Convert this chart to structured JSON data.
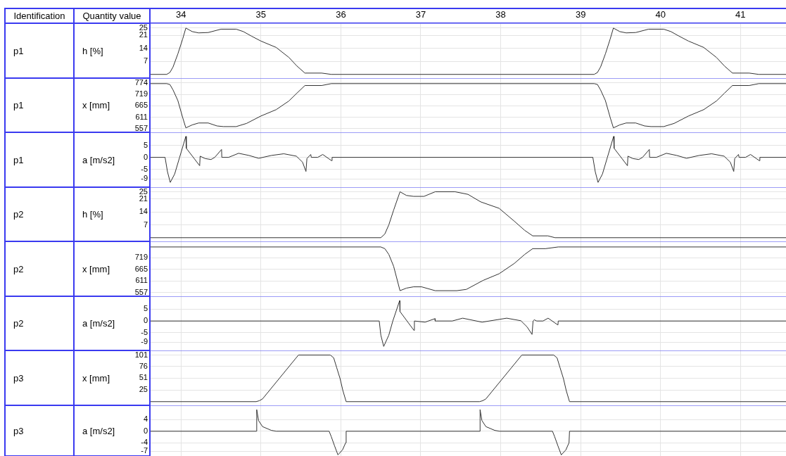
{
  "chart_data": [
    {
      "type": "line",
      "ylabel": "h [%]",
      "annotations": [
        "Identification",
        "Quantity value",
        "p1"
      ],
      "color": "#333333",
      "grid": true,
      "marker": "none",
      "xlim": [
        33.61,
        41.57
      ],
      "xticks": [
        34,
        35,
        36,
        37,
        38,
        39,
        40,
        41
      ],
      "ylim": [
        -2,
        27.5
      ],
      "yticks": [
        7,
        14,
        21,
        25
      ],
      "x": [
        33.61,
        33.82,
        33.86,
        33.9,
        33.96,
        34.02,
        34.06,
        34.14,
        34.22,
        34.34,
        34.5,
        34.69,
        34.78,
        34.88,
        35.0,
        35.19,
        35.35,
        35.45,
        35.55,
        35.76,
        35.88,
        39.17,
        39.21,
        39.25,
        39.31,
        39.37,
        39.41,
        39.49,
        39.57,
        39.69,
        39.85,
        40.04,
        40.13,
        40.23,
        40.35,
        40.54,
        40.7,
        40.8,
        40.9,
        41.11,
        41.23,
        41.57
      ],
      "values": [
        0,
        0,
        1,
        4,
        11,
        19,
        24.9,
        23,
        22.3,
        22.5,
        24.3,
        24.3,
        23,
        20.6,
        17.9,
        14.5,
        9.1,
        4.5,
        0.7,
        0.7,
        0,
        0,
        1,
        4,
        11,
        19,
        24.9,
        23,
        22.3,
        22.5,
        24.3,
        24.3,
        23,
        20.6,
        17.9,
        14.5,
        9.1,
        4.5,
        0.7,
        0.7,
        0,
        0
      ]
    },
    {
      "type": "line",
      "annotations": [
        "p1"
      ],
      "ylabel": "x [mm]",
      "color": "#333333",
      "grid": true,
      "marker": "none",
      "tick_labels": "y",
      "xlim": [
        33.61,
        41.57
      ],
      "xticks": [
        34,
        35,
        36,
        37,
        38,
        39,
        40,
        41
      ],
      "ylim": [
        540,
        796
      ],
      "yticks": [
        557,
        611,
        665,
        719,
        774
      ],
      "x": [
        33.61,
        33.82,
        33.86,
        33.9,
        33.96,
        34.02,
        34.06,
        34.14,
        34.22,
        34.34,
        34.45,
        34.53,
        34.69,
        34.82,
        35.0,
        35.19,
        35.35,
        35.45,
        35.55,
        35.76,
        35.88,
        39.17,
        39.21,
        39.25,
        39.31,
        39.37,
        39.41,
        39.49,
        39.57,
        39.69,
        39.8,
        39.88,
        40.04,
        40.17,
        40.35,
        40.54,
        40.7,
        40.8,
        40.9,
        41.11,
        41.23,
        41.57
      ],
      "values": [
        770,
        770,
        766,
        740,
        690,
        610,
        561,
        575,
        584,
        584,
        570,
        567,
        567,
        582,
        617,
        647,
        688,
        725,
        761,
        761,
        770,
        770,
        766,
        740,
        690,
        610,
        561,
        575,
        584,
        584,
        570,
        567,
        567,
        582,
        617,
        647,
        688,
        725,
        761,
        761,
        770,
        770
      ]
    },
    {
      "type": "line",
      "annotations": [
        "p1"
      ],
      "ylabel": "a [m/s2]",
      "color": "#333333",
      "grid": true,
      "marker": "none",
      "tick_labels": "y",
      "xlim": [
        33.61,
        41.57
      ],
      "xticks": [
        34,
        35,
        36,
        37,
        38,
        39,
        40,
        41
      ],
      "ylim": [
        -12.5,
        10.5
      ],
      "yticks": [
        -9,
        -5,
        0,
        5
      ],
      "x": [
        33.61,
        33.8,
        33.83,
        33.865,
        33.92,
        33.982,
        34.06,
        34.066,
        34.233,
        34.239,
        34.3,
        34.375,
        34.422,
        34.507,
        34.51,
        34.595,
        34.72,
        34.85,
        34.972,
        35.13,
        35.286,
        35.443,
        35.52,
        35.563,
        35.575,
        35.623,
        35.63,
        35.711,
        35.773,
        35.884,
        35.89,
        39.153,
        39.183,
        39.218,
        39.273,
        39.335,
        39.413,
        39.419,
        39.586,
        39.592,
        39.653,
        39.728,
        39.775,
        39.86,
        39.863,
        39.948,
        40.073,
        40.203,
        40.325,
        40.483,
        40.639,
        40.796,
        40.873,
        40.916,
        40.928,
        40.976,
        40.983,
        41.064,
        41.126,
        41.237,
        41.243,
        41.57
      ],
      "values": [
        0,
        0,
        -6,
        -10.5,
        -7,
        0,
        8.8,
        3.8,
        -3.5,
        0.5,
        -0.5,
        -0.9,
        0,
        3.3,
        0,
        0,
        1.7,
        0.8,
        -0.4,
        0.8,
        1.5,
        0.5,
        -2,
        -5.9,
        -0.5,
        1.2,
        0,
        0,
        1.2,
        -1.4,
        0,
        0,
        -6,
        -10.5,
        -7,
        0,
        8.8,
        3.8,
        -3.5,
        0.5,
        -0.5,
        -0.9,
        0,
        3.3,
        0,
        0,
        1.7,
        0.8,
        -0.4,
        0.8,
        1.5,
        0.5,
        -2,
        -5.9,
        -0.5,
        1.2,
        0,
        0,
        1.2,
        -1.4,
        0,
        0
      ]
    },
    {
      "type": "line",
      "annotations": [
        "p2"
      ],
      "ylabel": "h [%]",
      "color": "#333333",
      "grid": true,
      "marker": "none",
      "tick_labels": "y",
      "xlim": [
        33.61,
        41.57
      ],
      "xticks": [
        34,
        35,
        36,
        37,
        38,
        39,
        40,
        41
      ],
      "ylim": [
        -2,
        27.5
      ],
      "yticks": [
        7,
        14,
        21,
        25
      ],
      "x": [
        33.61,
        36.5,
        36.55,
        36.6,
        36.66,
        36.74,
        36.82,
        36.91,
        37.04,
        37.18,
        37.43,
        37.59,
        37.75,
        37.98,
        38.17,
        38.3,
        38.4,
        38.59,
        38.68,
        41.57
      ],
      "values": [
        0,
        0,
        2,
        7,
        15,
        25,
        23,
        22.5,
        22.5,
        25,
        25,
        23.6,
        19.5,
        16,
        9,
        4,
        1,
        1,
        0,
        0
      ]
    },
    {
      "type": "line",
      "annotations": [
        "p2"
      ],
      "ylabel": "x [mm]",
      "color": "#333333",
      "grid": true,
      "marker": "none",
      "tick_labels": "y",
      "xlim": [
        33.61,
        41.57
      ],
      "xticks": [
        34,
        35,
        36,
        37,
        38,
        39,
        40,
        41
      ],
      "ylim": [
        540,
        796
      ],
      "yticks": [
        557,
        611,
        665,
        719
      ],
      "x": [
        33.61,
        36.5,
        36.55,
        36.6,
        36.66,
        36.74,
        36.82,
        36.91,
        37.01,
        37.18,
        37.45,
        37.57,
        37.78,
        37.98,
        38.17,
        38.3,
        38.4,
        38.56,
        38.72,
        41.57
      ],
      "values": [
        770,
        770,
        762,
        735,
        680,
        566,
        578,
        584,
        584,
        566,
        566,
        572,
        614,
        645,
        693,
        735,
        762,
        762,
        770,
        770
      ]
    },
    {
      "type": "line",
      "annotations": [
        "p2"
      ],
      "ylabel": "a [m/s2]",
      "color": "#333333",
      "grid": true,
      "marker": "none",
      "tick_labels": "y",
      "xlim": [
        33.61,
        41.57
      ],
      "xticks": [
        34,
        35,
        36,
        37,
        38,
        39,
        40,
        41
      ],
      "ylim": [
        -12.5,
        10.5
      ],
      "yticks": [
        -9,
        -5,
        0,
        5
      ],
      "x": [
        33.61,
        36.48,
        36.5,
        36.536,
        36.6,
        36.65,
        36.736,
        36.74,
        36.915,
        36.92,
        37.054,
        37.178,
        37.18,
        37.394,
        37.524,
        37.767,
        38.075,
        38.253,
        38.33,
        38.392,
        38.405,
        38.42,
        38.45,
        38.53,
        38.593,
        38.716,
        38.72,
        41.57
      ],
      "values": [
        0,
        0,
        -6,
        -10.8,
        -6,
        0,
        8.7,
        4,
        -4,
        0,
        -0.5,
        1,
        0,
        0,
        1.2,
        -0.5,
        1.2,
        0.1,
        -2.5,
        -5.7,
        0,
        0.5,
        0,
        0,
        1.2,
        -1.7,
        0,
        0
      ]
    },
    {
      "type": "line",
      "annotations": [
        "p3"
      ],
      "ylabel": "x [mm]",
      "color": "#333333",
      "grid": true,
      "marker": "none",
      "tick_labels": "y",
      "xlim": [
        33.61,
        41.57
      ],
      "xticks": [
        34,
        35,
        36,
        37,
        38,
        39,
        40,
        41
      ],
      "ylim": [
        -8,
        111
      ],
      "yticks": [
        25,
        51,
        76,
        101
      ],
      "x": [
        33.61,
        34.94,
        34.98,
        35.02,
        35.469,
        35.868,
        35.91,
        35.947,
        35.99,
        36.025,
        36.066,
        37.735,
        37.775,
        37.815,
        38.264,
        38.663,
        38.705,
        38.742,
        38.785,
        38.82,
        38.861,
        41.57
      ],
      "values": [
        0,
        0,
        2,
        6,
        101,
        101,
        95,
        74,
        50,
        24,
        0,
        0,
        2,
        6,
        101,
        101,
        95,
        74,
        50,
        24,
        0,
        0
      ]
    },
    {
      "type": "line",
      "annotations": [
        "p3"
      ],
      "ylabel": "a [m/s2]",
      "color": "#333333",
      "grid": true,
      "marker": "none",
      "tick_labels": "y",
      "xlim": [
        33.61,
        41.57
      ],
      "xticks": [
        34,
        35,
        36,
        37,
        38,
        39,
        40,
        41
      ],
      "ylim": [
        -8.6,
        9
      ],
      "yticks": [
        -7,
        -4,
        0,
        4
      ],
      "x": [
        33.61,
        34.945,
        34.947,
        34.97,
        35.02,
        35.13,
        35.19,
        35.853,
        35.88,
        35.92,
        35.963,
        36.02,
        36.06,
        36.066,
        37.74,
        37.742,
        37.765,
        37.815,
        37.925,
        37.985,
        38.648,
        38.675,
        38.715,
        38.758,
        38.815,
        38.855,
        38.861,
        41.57
      ],
      "values": [
        0,
        0,
        7.5,
        3.7,
        1.6,
        0.3,
        0,
        0,
        -1.9,
        -5,
        -8.2,
        -6.5,
        -4,
        0,
        0,
        7.5,
        3.7,
        1.6,
        0.3,
        0,
        0,
        -1.9,
        -5,
        -8.2,
        -6.5,
        -4,
        0,
        0
      ]
    }
  ]
}
